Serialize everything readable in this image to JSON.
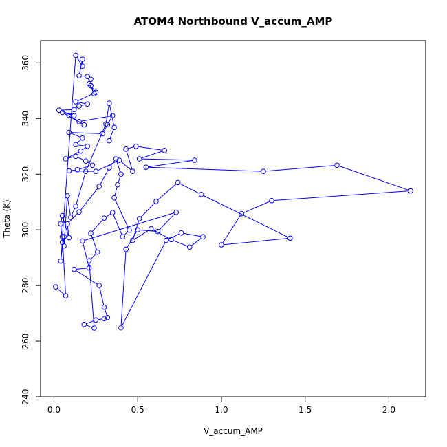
{
  "chart_data": {
    "type": "line",
    "title": "ATOM4 Northbound V_accum_AMP",
    "xlabel": "V_accum_AMP",
    "ylabel": "Theta (K)",
    "xlim": [
      -0.08,
      2.22
    ],
    "ylim": [
      240,
      368
    ],
    "xticks": [
      0.0,
      0.5,
      1.0,
      1.5,
      2.0
    ],
    "xtick_labels": [
      "0.0",
      "0.5",
      "1.0",
      "1.5",
      "2.0"
    ],
    "yticks": [
      240,
      260,
      280,
      300,
      320,
      340,
      360
    ],
    "ytick_labels": [
      "240",
      "260",
      "280",
      "300",
      "320",
      "340",
      "360"
    ],
    "grid": false,
    "legend": "none",
    "series": [
      {
        "color": "#0000ff",
        "style": "lines+open-circles",
        "points": [
          [
            0.01,
            279.5
          ],
          [
            0.07,
            276.3
          ],
          [
            0.05,
            297.5
          ],
          [
            0.13,
            362.7
          ],
          [
            0.17,
            358.8
          ],
          [
            0.17,
            361.3
          ],
          [
            0.15,
            355.4
          ],
          [
            0.2,
            355.1
          ],
          [
            0.22,
            354.1
          ],
          [
            0.21,
            352.5
          ],
          [
            0.24,
            348.9
          ],
          [
            0.22,
            351.8
          ],
          [
            0.25,
            349.4
          ],
          [
            0.13,
            346.0
          ],
          [
            0.2,
            345.2
          ],
          [
            0.15,
            344.5
          ],
          [
            0.12,
            343.2
          ],
          [
            0.03,
            343.0
          ],
          [
            0.12,
            341.0
          ],
          [
            0.05,
            342.2
          ],
          [
            0.18,
            337.7
          ],
          [
            0.09,
            341.1
          ],
          [
            0.15,
            338.9
          ],
          [
            0.35,
            341.0
          ],
          [
            0.32,
            337.8
          ],
          [
            0.29,
            334.5
          ],
          [
            0.09,
            335.0
          ],
          [
            0.17,
            333.0
          ],
          [
            0.13,
            330.6
          ],
          [
            0.2,
            330.0
          ],
          [
            0.16,
            328.3
          ],
          [
            0.07,
            325.5
          ],
          [
            0.13,
            326.4
          ],
          [
            0.19,
            324.7
          ],
          [
            0.23,
            323.2
          ],
          [
            0.14,
            321.6
          ],
          [
            0.09,
            321.2
          ],
          [
            0.25,
            321.0
          ],
          [
            0.39,
            325.0
          ],
          [
            0.47,
            321.0
          ],
          [
            0.43,
            329.0
          ],
          [
            0.49,
            330.0
          ],
          [
            0.66,
            328.5
          ],
          [
            0.51,
            325.5
          ],
          [
            0.84,
            325.0
          ],
          [
            0.55,
            322.5
          ],
          [
            1.25,
            321.0
          ],
          [
            1.69,
            323.2
          ],
          [
            2.13,
            314.0
          ],
          [
            1.3,
            310.5
          ],
          [
            1.12,
            305.8
          ],
          [
            1.0,
            294.6
          ],
          [
            1.41,
            297.0
          ],
          [
            0.88,
            312.7
          ],
          [
            0.74,
            317.0
          ],
          [
            0.61,
            310.2
          ],
          [
            0.51,
            304.0
          ],
          [
            0.47,
            296.2
          ],
          [
            0.58,
            300.4
          ],
          [
            0.7,
            296.5
          ],
          [
            0.81,
            293.8
          ],
          [
            0.89,
            297.5
          ],
          [
            0.76,
            298.9
          ],
          [
            0.67,
            296.2
          ],
          [
            0.4,
            264.8
          ],
          [
            0.43,
            293.0
          ],
          [
            0.5,
            300.0
          ],
          [
            0.62,
            299.4
          ],
          [
            0.73,
            306.3
          ],
          [
            0.17,
            296.0
          ],
          [
            0.21,
            286.3
          ],
          [
            0.12,
            285.8
          ],
          [
            0.27,
            280.0
          ],
          [
            0.3,
            272.2
          ],
          [
            0.32,
            268.5
          ],
          [
            0.3,
            268.1
          ],
          [
            0.25,
            267.6
          ],
          [
            0.18,
            266.0
          ],
          [
            0.24,
            264.7
          ],
          [
            0.21,
            288.9
          ],
          [
            0.26,
            292.0
          ],
          [
            0.22,
            298.8
          ],
          [
            0.3,
            304.2
          ],
          [
            0.35,
            306.2
          ],
          [
            0.41,
            297.5
          ],
          [
            0.45,
            299.9
          ],
          [
            0.36,
            311.5
          ],
          [
            0.38,
            316.2
          ],
          [
            0.4,
            320.0
          ],
          [
            0.37,
            325.5
          ],
          [
            0.33,
            322.3
          ],
          [
            0.27,
            315.6
          ],
          [
            0.15,
            306.4
          ],
          [
            0.08,
            302.1
          ],
          [
            0.09,
            297.2
          ],
          [
            0.05,
            305.1
          ],
          [
            0.04,
            302.2
          ],
          [
            0.05,
            295.5
          ],
          [
            0.04,
            288.8
          ],
          [
            0.06,
            297.6
          ],
          [
            0.06,
            294.2
          ],
          [
            0.08,
            312.2
          ],
          [
            0.1,
            304.5
          ],
          [
            0.13,
            308.5
          ],
          [
            0.19,
            321.0
          ],
          [
            0.31,
            338.0
          ],
          [
            0.33,
            345.5
          ],
          [
            0.36,
            336.8
          ],
          [
            0.33,
            332.0
          ]
        ]
      }
    ]
  }
}
